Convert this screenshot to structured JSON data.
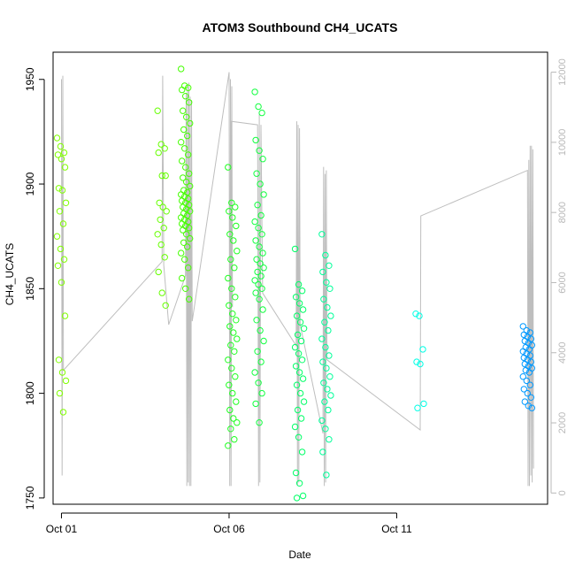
{
  "chart_data": {
    "type": "scatter",
    "title": "ATOM3 Southbound CH4_UCATS",
    "xlabel": "Date",
    "ylabel": "CH4_UCATS",
    "x_ticks": [
      "Oct 01",
      "Oct 06",
      "Oct 11"
    ],
    "x_tick_days": [
      1,
      6,
      11
    ],
    "xlim": [
      0.75,
      15.5
    ],
    "ylim": [
      1747,
      1963
    ],
    "y_ticks": [
      1750,
      1800,
      1850,
      1900,
      1950
    ],
    "y2_ticks": [
      0,
      2000,
      4000,
      6000,
      8000,
      10000,
      12000
    ],
    "y2lim": [
      -320,
      12570
    ],
    "grid": false,
    "legend": "none",
    "colors": {
      "frame": "#000000",
      "line": "#bebebe",
      "right_axis": "#b8b8b8"
    },
    "series": [
      {
        "kind": "points",
        "color": "#80ff00",
        "day": 1.0,
        "values": [
          1922,
          1918,
          1915,
          1914,
          1912,
          1908,
          1898,
          1897,
          1891,
          1887,
          1881,
          1875,
          1869,
          1864,
          1861,
          1853,
          1837,
          1816,
          1810,
          1806,
          1800,
          1791
        ]
      },
      {
        "kind": "points",
        "color": "#66ff00",
        "day": 4.0,
        "values": [
          1935,
          1919,
          1917,
          1915,
          1904,
          1904,
          1891,
          1889,
          1887,
          1883,
          1879,
          1876,
          1871,
          1865,
          1858,
          1848,
          1842
        ]
      },
      {
        "kind": "points",
        "color": "#44ff00",
        "day": 4.7,
        "values": [
          1955,
          1947,
          1946,
          1945,
          1942,
          1939,
          1935,
          1932,
          1929,
          1926,
          1923,
          1920,
          1917,
          1914,
          1911,
          1908,
          1905,
          1903,
          1901,
          1899,
          1897,
          1896,
          1895,
          1894,
          1893,
          1892,
          1891,
          1890,
          1889,
          1888,
          1887,
          1886,
          1885,
          1884,
          1883,
          1882,
          1881,
          1880,
          1879,
          1878,
          1876,
          1874,
          1872,
          1870,
          1867,
          1864,
          1860,
          1855,
          1850,
          1845
        ]
      },
      {
        "kind": "points",
        "color": "#1eff20",
        "day": 6.1,
        "values": [
          1908,
          1891,
          1889,
          1887,
          1884,
          1880,
          1876,
          1873,
          1868,
          1864,
          1860,
          1855,
          1850,
          1846,
          1842,
          1838,
          1835,
          1832,
          1829,
          1826,
          1823,
          1820,
          1816,
          1812,
          1808,
          1804,
          1800,
          1796,
          1792,
          1788,
          1786,
          1783,
          1778,
          1775
        ]
      },
      {
        "kind": "points",
        "color": "#12ff40",
        "day": 6.9,
        "values": [
          1944,
          1937,
          1934,
          1921,
          1916,
          1912,
          1905,
          1900,
          1895,
          1890,
          1885,
          1882,
          1879,
          1876,
          1873,
          1870,
          1867,
          1864,
          1862,
          1860,
          1858,
          1856,
          1854,
          1852,
          1850,
          1848,
          1845,
          1840,
          1835,
          1830,
          1825,
          1820,
          1815,
          1810,
          1805,
          1800,
          1795,
          1786
        ]
      },
      {
        "kind": "points",
        "color": "#00ff66",
        "day": 8.1,
        "values": [
          1869,
          1852,
          1849,
          1846,
          1843,
          1840,
          1837,
          1834,
          1831,
          1828,
          1825,
          1822,
          1819,
          1816,
          1813,
          1810,
          1807,
          1804,
          1800,
          1796,
          1792,
          1788,
          1784,
          1779,
          1772,
          1762,
          1757,
          1751,
          1750
        ]
      },
      {
        "kind": "points",
        "color": "#00ff99",
        "day": 8.9,
        "values": [
          1876,
          1866,
          1861,
          1858,
          1853,
          1850,
          1845,
          1841,
          1837,
          1834,
          1830,
          1826,
          1822,
          1818,
          1815,
          1812,
          1808,
          1805,
          1802,
          1799,
          1796,
          1792,
          1787,
          1783,
          1778,
          1772,
          1761
        ]
      },
      {
        "kind": "points",
        "color": "#00ffe6",
        "day": 11.7,
        "values": [
          1838,
          1837,
          1821,
          1815,
          1814,
          1795,
          1793
        ]
      },
      {
        "kind": "points",
        "color": "#0099ff",
        "day": 14.9,
        "values": [
          1832,
          1830,
          1829,
          1828,
          1827,
          1826,
          1825,
          1824,
          1823,
          1822,
          1821,
          1820,
          1819,
          1818,
          1817,
          1816,
          1815,
          1814,
          1813,
          1812,
          1811,
          1810,
          1808,
          1806,
          1804,
          1802,
          1800,
          1798,
          1796,
          1794,
          1793
        ]
      },
      {
        "kind": "line",
        "axis": "right",
        "name": "",
        "color": "#bebebe",
        "points": [
          [
            1.0,
            11800
          ],
          [
            1.02,
            500
          ],
          [
            1.04,
            11900
          ],
          [
            1.06,
            3500
          ],
          [
            4.0,
            6600
          ],
          [
            4.02,
            11900
          ],
          [
            4.05,
            6500
          ],
          [
            4.2,
            4800
          ],
          [
            4.7,
            6200
          ],
          [
            4.72,
            11400
          ],
          [
            4.74,
            200
          ],
          [
            4.76,
            11600
          ],
          [
            4.78,
            300
          ],
          [
            4.8,
            11700
          ],
          [
            4.82,
            200
          ],
          [
            4.84,
            11300
          ],
          [
            4.86,
            200
          ],
          [
            4.88,
            11200
          ],
          [
            4.9,
            4900
          ],
          [
            6.0,
            12000
          ],
          [
            6.02,
            200
          ],
          [
            6.04,
            11800
          ],
          [
            6.06,
            200
          ],
          [
            6.08,
            11600
          ],
          [
            6.1,
            5300
          ],
          [
            6.05,
            10600
          ],
          [
            6.85,
            10500
          ],
          [
            6.88,
            200
          ],
          [
            6.9,
            10800
          ],
          [
            6.92,
            300
          ],
          [
            6.95,
            10500
          ],
          [
            7.0,
            5700
          ],
          [
            8.0,
            4200
          ],
          [
            8.02,
            10600
          ],
          [
            8.04,
            200
          ],
          [
            8.06,
            10500
          ],
          [
            8.08,
            300
          ],
          [
            8.1,
            10400
          ],
          [
            8.12,
            4800
          ],
          [
            8.8,
            1700
          ],
          [
            8.82,
            9300
          ],
          [
            8.84,
            200
          ],
          [
            8.86,
            9100
          ],
          [
            8.88,
            300
          ],
          [
            8.9,
            9200
          ],
          [
            8.92,
            3800
          ],
          [
            11.7,
            1800
          ],
          [
            11.72,
            7900
          ],
          [
            14.9,
            9200
          ],
          [
            14.92,
            200
          ],
          [
            14.94,
            9500
          ],
          [
            14.96,
            200
          ],
          [
            14.98,
            9900
          ],
          [
            15.0,
            500
          ],
          [
            15.02,
            9900
          ],
          [
            15.04,
            300
          ],
          [
            15.06,
            9800
          ],
          [
            15.08,
            700
          ]
        ]
      }
    ]
  }
}
